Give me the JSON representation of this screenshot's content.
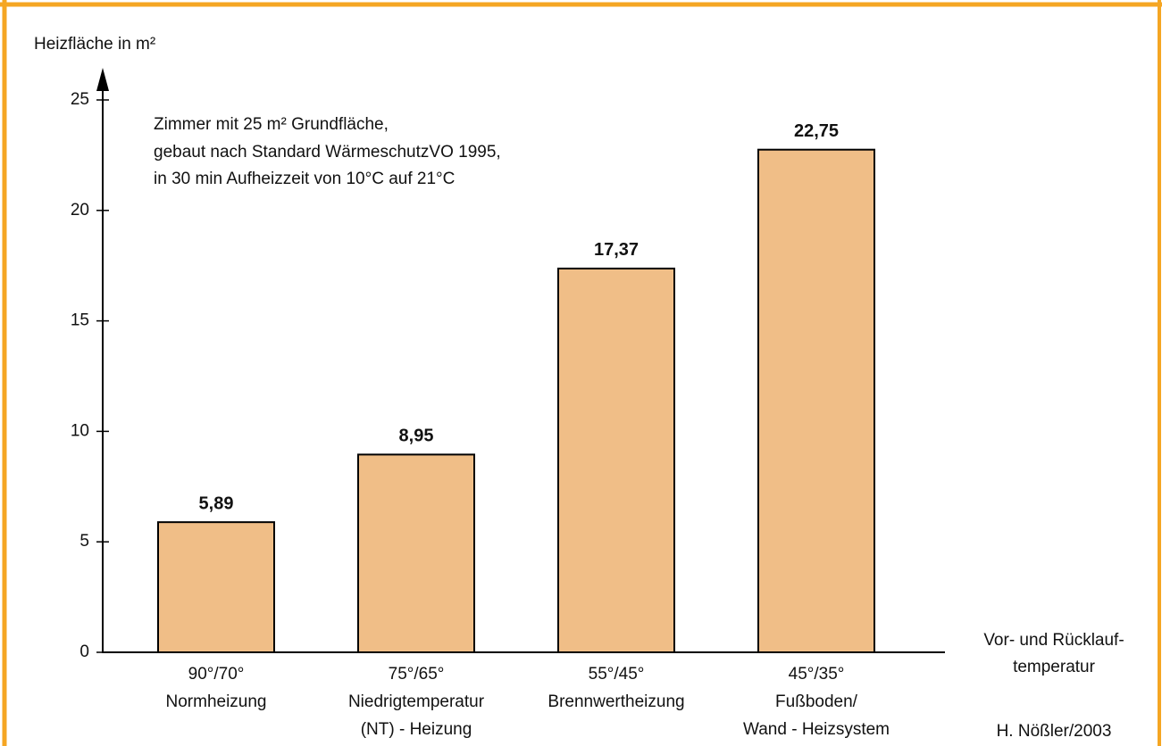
{
  "chart_data": {
    "type": "bar",
    "y_label": "Heizfläche in m²",
    "x_label": [
      "Vor- und Rücklauf-",
      "temperatur"
    ],
    "annotation": [
      "Zimmer mit 25 m² Grundfläche,",
      "gebaut nach Standard WärmeschutzVO 1995,",
      "in 30 min Aufheizzeit von 10°C auf 21°C"
    ],
    "credit": "H. Nößler/2003",
    "categories": [
      [
        "90°/70°",
        "Normheizung"
      ],
      [
        "75°/65°",
        "Niedrigtemperatur",
        "(NT) - Heizung"
      ],
      [
        "55°/45°",
        "Brennwertheizung"
      ],
      [
        "45°/35°",
        "Fußboden/",
        "Wand - Heizsystem"
      ]
    ],
    "values": [
      5.89,
      8.95,
      17.37,
      22.75
    ],
    "value_labels": [
      "5,89",
      "8,95",
      "17,37",
      "22,75"
    ],
    "color": "#f0be87",
    "ylim": [
      0,
      25
    ],
    "yticks": [
      0,
      5,
      10,
      15,
      20,
      25
    ]
  }
}
